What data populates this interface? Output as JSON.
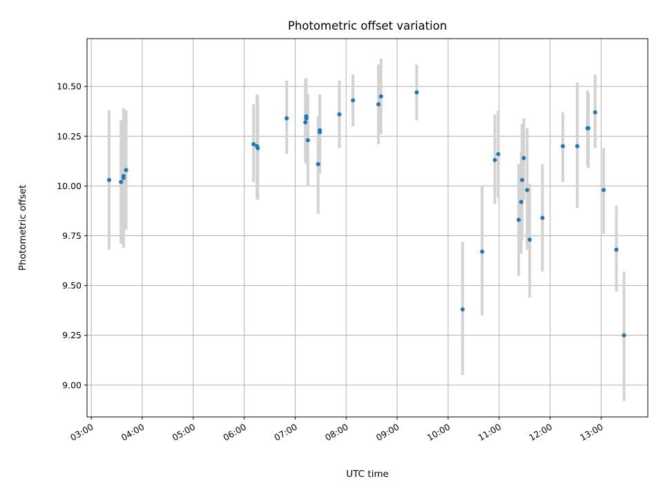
{
  "chart_data": {
    "type": "scatter",
    "title": "Photometric offset variation",
    "xlabel": "UTC time",
    "ylabel": "Photometric offset",
    "x_axis_type": "time",
    "xlim": [
      "02:55",
      "13:55"
    ],
    "ylim": [
      8.84,
      10.74
    ],
    "x_ticks": [
      "03:00",
      "04:00",
      "05:00",
      "06:00",
      "07:00",
      "08:00",
      "09:00",
      "10:00",
      "11:00",
      "12:00",
      "13:00"
    ],
    "y_ticks": [
      "9.00",
      "9.25",
      "9.50",
      "9.75",
      "10.00",
      "10.25",
      "10.50"
    ],
    "grid": true,
    "legend": "none",
    "colors": {
      "points": "#1f77b4",
      "error_bars": "#d3d3d3",
      "grid": "#b0b0b0"
    },
    "points": [
      {
        "x": "03:21",
        "y": 10.03,
        "lo": 9.68,
        "hi": 10.38
      },
      {
        "x": "03:35",
        "y": 10.02,
        "lo": 9.71,
        "hi": 10.33
      },
      {
        "x": "03:38",
        "y": 10.04,
        "lo": 9.69,
        "hi": 10.39
      },
      {
        "x": "03:38",
        "y": 10.05,
        "lo": 9.74,
        "hi": 10.36
      },
      {
        "x": "03:41",
        "y": 10.08,
        "lo": 9.78,
        "hi": 10.38
      },
      {
        "x": "06:11",
        "y": 10.21,
        "lo": 10.02,
        "hi": 10.41
      },
      {
        "x": "06:15",
        "y": 10.2,
        "lo": 9.94,
        "hi": 10.46
      },
      {
        "x": "06:16",
        "y": 10.19,
        "lo": 9.93,
        "hi": 10.45
      },
      {
        "x": "06:50",
        "y": 10.34,
        "lo": 10.16,
        "hi": 10.53
      },
      {
        "x": "07:12",
        "y": 10.32,
        "lo": 10.12,
        "hi": 10.54
      },
      {
        "x": "07:13",
        "y": 10.35,
        "lo": 10.15,
        "hi": 10.54
      },
      {
        "x": "07:13",
        "y": 10.34,
        "lo": 10.11,
        "hi": 10.53
      },
      {
        "x": "07:15",
        "y": 10.23,
        "lo": 10.0,
        "hi": 10.46
      },
      {
        "x": "07:27",
        "y": 10.11,
        "lo": 9.86,
        "hi": 10.35
      },
      {
        "x": "07:29",
        "y": 10.28,
        "lo": 10.06,
        "hi": 10.46
      },
      {
        "x": "07:29",
        "y": 10.27,
        "lo": 10.09,
        "hi": 10.45
      },
      {
        "x": "07:52",
        "y": 10.36,
        "lo": 10.19,
        "hi": 10.53
      },
      {
        "x": "08:08",
        "y": 10.43,
        "lo": 10.3,
        "hi": 10.56
      },
      {
        "x": "08:38",
        "y": 10.41,
        "lo": 10.21,
        "hi": 10.61
      },
      {
        "x": "08:41",
        "y": 10.45,
        "lo": 10.26,
        "hi": 10.64
      },
      {
        "x": "09:23",
        "y": 10.47,
        "lo": 10.33,
        "hi": 10.61
      },
      {
        "x": "10:17",
        "y": 9.38,
        "lo": 9.05,
        "hi": 9.72
      },
      {
        "x": "10:40",
        "y": 9.67,
        "lo": 9.35,
        "hi": 10.0
      },
      {
        "x": "10:55",
        "y": 10.13,
        "lo": 9.91,
        "hi": 10.36
      },
      {
        "x": "10:59",
        "y": 10.16,
        "lo": 9.94,
        "hi": 10.38
      },
      {
        "x": "11:23",
        "y": 9.83,
        "lo": 9.55,
        "hi": 10.11
      },
      {
        "x": "11:26",
        "y": 9.92,
        "lo": 9.66,
        "hi": 10.17
      },
      {
        "x": "11:27",
        "y": 10.03,
        "lo": 9.73,
        "hi": 10.31
      },
      {
        "x": "11:29",
        "y": 10.14,
        "lo": 9.93,
        "hi": 10.34
      },
      {
        "x": "11:33",
        "y": 9.98,
        "lo": 9.68,
        "hi": 10.29
      },
      {
        "x": "11:36",
        "y": 9.73,
        "lo": 9.44,
        "hi": 10.01
      },
      {
        "x": "11:51",
        "y": 9.84,
        "lo": 9.57,
        "hi": 10.11
      },
      {
        "x": "12:15",
        "y": 10.2,
        "lo": 10.02,
        "hi": 10.37
      },
      {
        "x": "12:32",
        "y": 10.2,
        "lo": 9.89,
        "hi": 10.52
      },
      {
        "x": "12:44",
        "y": 10.29,
        "lo": 10.1,
        "hi": 10.48
      },
      {
        "x": "12:45",
        "y": 10.29,
        "lo": 10.09,
        "hi": 10.47
      },
      {
        "x": "12:53",
        "y": 10.37,
        "lo": 10.19,
        "hi": 10.56
      },
      {
        "x": "13:03",
        "y": 9.98,
        "lo": 9.76,
        "hi": 10.19
      },
      {
        "x": "13:18",
        "y": 9.68,
        "lo": 9.47,
        "hi": 9.9
      },
      {
        "x": "13:27",
        "y": 9.25,
        "lo": 8.92,
        "hi": 9.57
      }
    ]
  }
}
